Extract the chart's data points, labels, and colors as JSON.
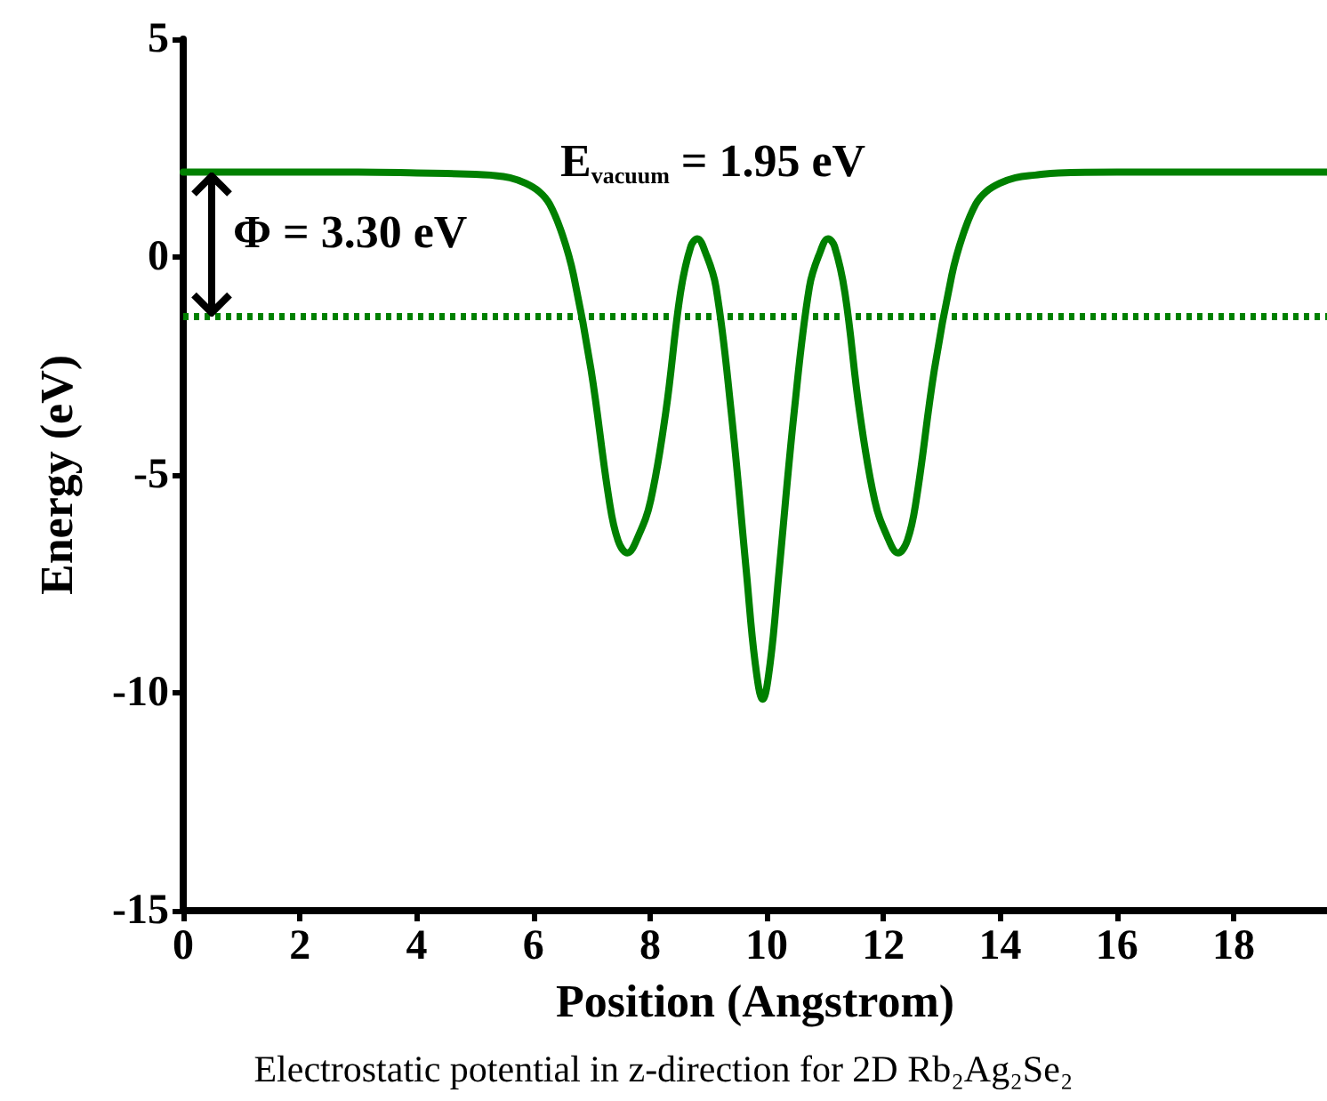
{
  "chart_data": {
    "type": "line",
    "xlabel": "Position (Angstrom)",
    "ylabel": "Energy (eV)",
    "xlim": [
      0,
      19.6
    ],
    "xticks": [
      0,
      2,
      4,
      6,
      8,
      10,
      12,
      14,
      16,
      18
    ],
    "ylim": [
      -15,
      5
    ],
    "yticks": [
      -15,
      -10,
      -5,
      0,
      5
    ],
    "grid": false,
    "marker": "none",
    "line_style": "solid",
    "series": [
      {
        "color": "#008000",
        "x": [
          0,
          1,
          2,
          3,
          4,
          5,
          5.26,
          5.6,
          5.87,
          6.1,
          6.28,
          6.5,
          6.69,
          6.99,
          7.3,
          7.45,
          7.61,
          7.8,
          8.01,
          8.27,
          8.52,
          8.7,
          8.81,
          8.95,
          9.13,
          9.39,
          9.65,
          9.8,
          9.93,
          10.06,
          10.21,
          10.47,
          10.73,
          10.91,
          11.05,
          11.16,
          11.34,
          11.59,
          11.85,
          12.06,
          12.25,
          12.41,
          12.56,
          12.87,
          13.17,
          13.36,
          13.58,
          13.76,
          13.99,
          14.26,
          14.6,
          15,
          16,
          17,
          18,
          19,
          19.6
        ],
        "values": [
          1.95,
          1.95,
          1.95,
          1.95,
          1.93,
          1.9,
          1.88,
          1.82,
          1.69,
          1.5,
          1.21,
          0.5,
          -0.42,
          -2.6,
          -5.59,
          -6.5,
          -6.79,
          -6.4,
          -5.59,
          -3.55,
          -0.83,
          0.25,
          0.42,
          0.1,
          -0.69,
          -3.55,
          -7.22,
          -9.3,
          -10.15,
          -9.3,
          -7.22,
          -3.55,
          -0.69,
          0.1,
          0.42,
          0.25,
          -0.83,
          -3.55,
          -5.59,
          -6.4,
          -6.79,
          -6.5,
          -5.59,
          -2.6,
          -0.42,
          0.5,
          1.21,
          1.5,
          1.69,
          1.82,
          1.88,
          1.93,
          1.95,
          1.95,
          1.95,
          1.95,
          1.95
        ]
      }
    ],
    "ref_lines": [
      {
        "axis": "y",
        "value": -1.35,
        "color": "#008000",
        "line_style": "dotted"
      }
    ],
    "annotations": [
      "Φ = 3.30 eV",
      "E$_{vacuum}$ = 1.95 eV",
      "Electrostatic potential in z-direction for 2D Rb₂Ag₂Se₂"
    ]
  }
}
